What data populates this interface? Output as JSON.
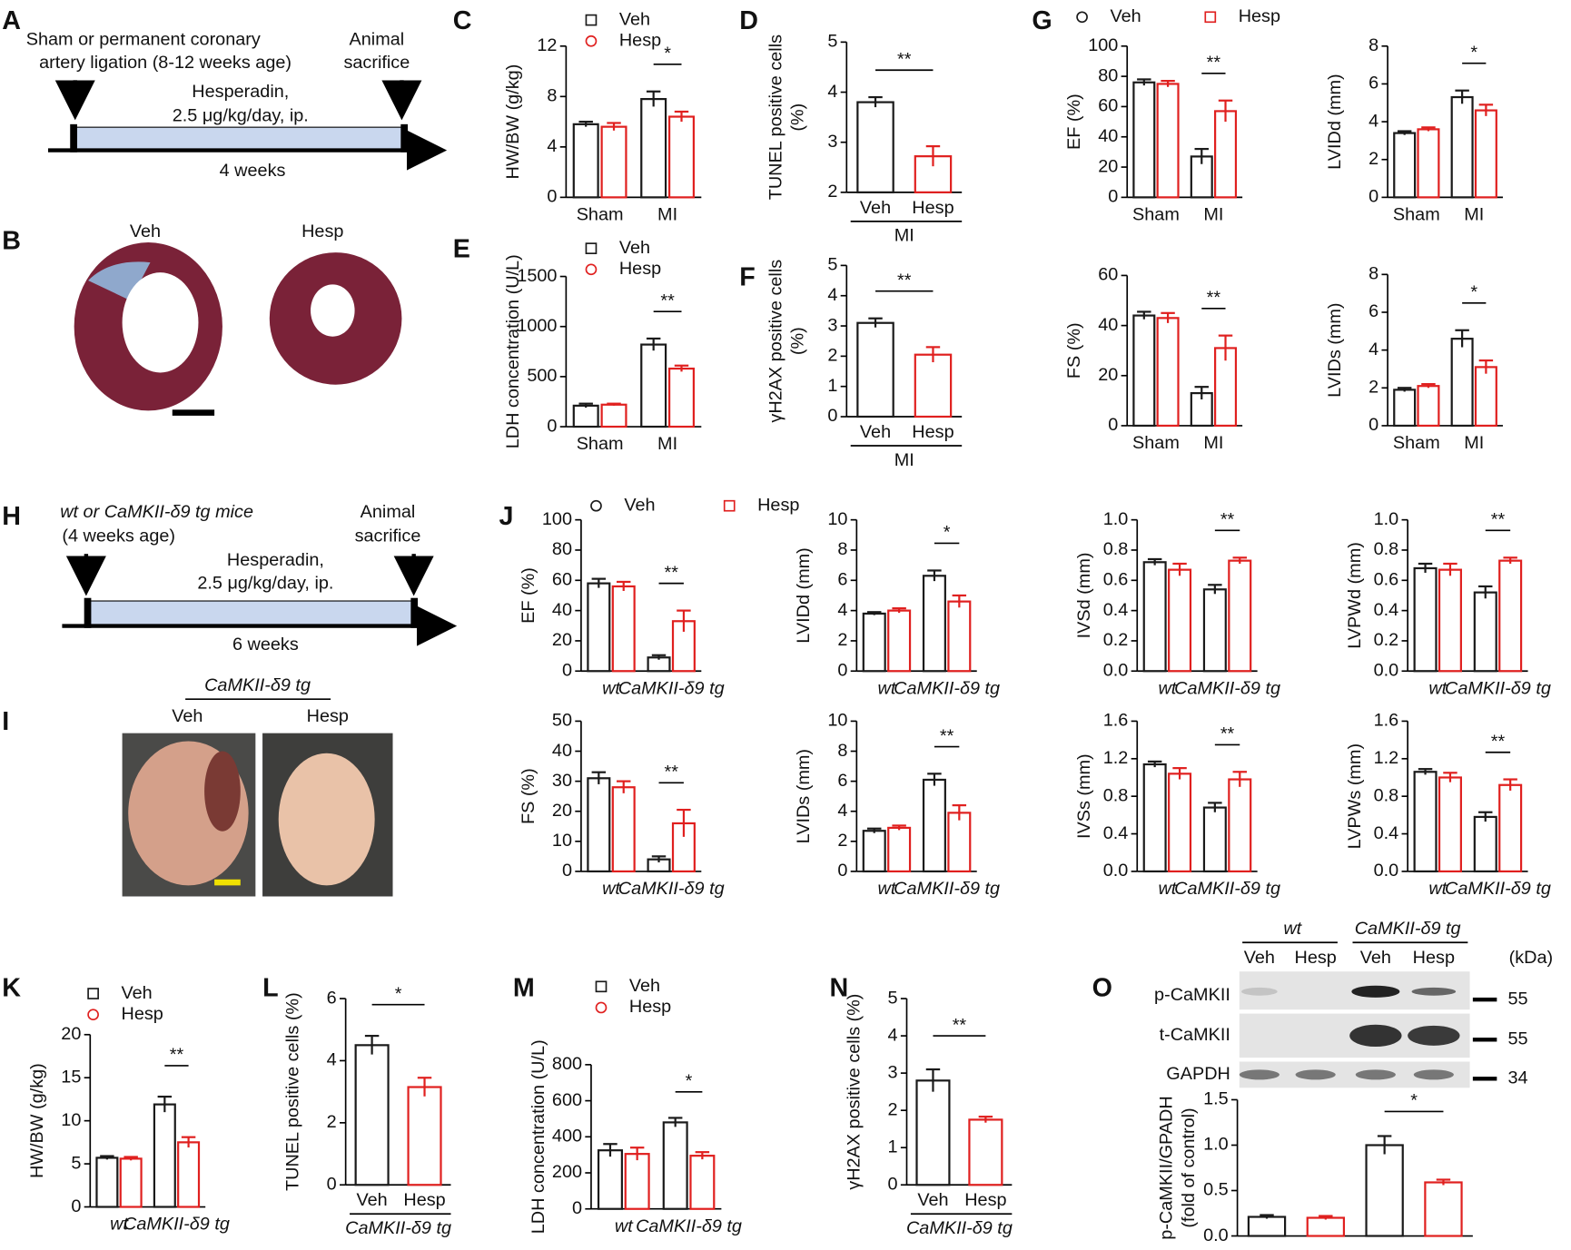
{
  "panels": [
    "A",
    "B",
    "C",
    "D",
    "E",
    "F",
    "G",
    "H",
    "I",
    "J",
    "K",
    "L",
    "M",
    "N",
    "O"
  ],
  "scheme_a": {
    "lines": [
      "Sham or permanent coronary",
      "artery ligation (8-12 weeks age)"
    ],
    "end": [
      "Animal",
      "sacrifice"
    ],
    "drug": [
      "Hesperadin,",
      "2.5 μg/kg/day, ip."
    ],
    "duration": "4 weeks"
  },
  "scheme_h": {
    "lines": [
      "wt or CaMKII-δ9 tg mice",
      "(4 weeks age)"
    ],
    "end": [
      "Animal",
      "sacrifice"
    ],
    "drug": [
      "Hesperadin,",
      "2.5 μg/kg/day, ip."
    ],
    "duration": "6 weeks"
  },
  "histology_b": {
    "labels": [
      "Veh",
      "Hesp"
    ]
  },
  "photo_i": {
    "group": "CaMKII-δ9 tg",
    "labels": [
      "Veh",
      "Hesp"
    ]
  },
  "blot_o": {
    "groups": [
      "wt",
      "CaMKII-δ9 tg"
    ],
    "lanes": [
      "Veh",
      "Hesp",
      "Veh",
      "Hesp"
    ],
    "unit": "(kDa)",
    "bands": [
      {
        "name": "p-CaMKII",
        "kda": 55
      },
      {
        "name": "t-CaMKII",
        "kda": 55
      },
      {
        "name": "GAPDH",
        "kda": 34
      }
    ]
  },
  "chart_data": [
    {
      "type": "bar",
      "ylabel": "HW/BW (g/kg)",
      "categories": [
        "Sham",
        "MI"
      ],
      "legend": true,
      "series": [
        {
          "name": "Veh",
          "marker": "square",
          "color": "#1a1a1a",
          "values": [
            5.8,
            7.8
          ],
          "errors": [
            0.2,
            0.6
          ]
        },
        {
          "name": "Hesp",
          "marker": "circle",
          "color": "#e0201f",
          "values": [
            5.6,
            6.4
          ],
          "errors": [
            0.3,
            0.4
          ]
        }
      ],
      "ylim": [
        0,
        12
      ],
      "yticks": [
        0,
        4,
        8,
        12
      ],
      "annotations": [
        {
          "text": "*",
          "at": 1
        }
      ]
    },
    {
      "type": "bar",
      "ylabel": [
        "TUNEL positive cells",
        "(%)"
      ],
      "categories": [
        "Veh",
        "Hesp"
      ],
      "values": [
        3.8,
        2.72
      ],
      "errors": [
        0.1,
        0.2
      ],
      "colors": [
        "#1a1a1a",
        "#e0201f"
      ],
      "group_label": "MI",
      "ylim": [
        2,
        5
      ],
      "yticks": [
        2,
        3,
        4,
        5
      ],
      "annotations": [
        {
          "text": "**"
        }
      ]
    },
    {
      "type": "bar",
      "ylabel": "LDH concentration (U/L)",
      "categories": [
        "Sham",
        "MI"
      ],
      "legend": true,
      "series": [
        {
          "name": "Veh",
          "marker": "square",
          "color": "#1a1a1a",
          "values": [
            210,
            820
          ],
          "errors": [
            20,
            60
          ]
        },
        {
          "name": "Hesp",
          "marker": "circle",
          "color": "#e0201f",
          "values": [
            220,
            580
          ],
          "errors": [
            10,
            30
          ]
        }
      ],
      "ylim": [
        0,
        1500
      ],
      "yticks": [
        0,
        500,
        1000,
        1500
      ],
      "annotations": [
        {
          "text": "**",
          "at": 1
        }
      ]
    },
    {
      "type": "bar",
      "ylabel": [
        "γH2AX positive cells",
        "(%)"
      ],
      "categories": [
        "Veh",
        "Hesp"
      ],
      "values": [
        3.1,
        2.05
      ],
      "errors": [
        0.15,
        0.25
      ],
      "colors": [
        "#1a1a1a",
        "#e0201f"
      ],
      "group_label": "MI",
      "ylim": [
        0,
        5
      ],
      "yticks": [
        0,
        1,
        2,
        3,
        4,
        5
      ],
      "annotations": [
        {
          "text": "**"
        }
      ]
    },
    {
      "type": "bar",
      "ylabel": "EF (%)",
      "categories": [
        "Sham",
        "MI"
      ],
      "legend": true,
      "series": [
        {
          "name": "Veh",
          "marker": "circle",
          "color": "#1a1a1a",
          "values": [
            76,
            27
          ],
          "errors": [
            2,
            5
          ]
        },
        {
          "name": "Hesp",
          "marker": "square",
          "color": "#e0201f",
          "values": [
            75,
            57
          ],
          "errors": [
            2,
            7
          ]
        }
      ],
      "ylim": [
        0,
        100
      ],
      "yticks": [
        0,
        20,
        40,
        60,
        80,
        100
      ],
      "annotations": [
        {
          "text": "**",
          "at": 1
        }
      ]
    },
    {
      "type": "bar",
      "ylabel": "LVIDd (mm)",
      "categories": [
        "Sham",
        "MI"
      ],
      "series": [
        {
          "color": "#1a1a1a",
          "values": [
            3.4,
            5.3
          ],
          "errors": [
            0.1,
            0.35
          ]
        },
        {
          "color": "#e0201f",
          "values": [
            3.6,
            4.6
          ],
          "errors": [
            0.1,
            0.3
          ]
        }
      ],
      "ylim": [
        0,
        8
      ],
      "yticks": [
        0,
        2,
        4,
        6,
        8
      ],
      "annotations": [
        {
          "text": "*",
          "at": 1
        }
      ]
    },
    {
      "type": "bar",
      "ylabel": "FS (%)",
      "categories": [
        "Sham",
        "MI"
      ],
      "series": [
        {
          "color": "#1a1a1a",
          "values": [
            44,
            13
          ],
          "errors": [
            1.5,
            2.5
          ]
        },
        {
          "color": "#e0201f",
          "values": [
            43,
            31
          ],
          "errors": [
            2,
            5
          ]
        }
      ],
      "ylim": [
        0,
        60
      ],
      "yticks": [
        0,
        20,
        40,
        60
      ],
      "annotations": [
        {
          "text": "**",
          "at": 1
        }
      ]
    },
    {
      "type": "bar",
      "ylabel": "LVIDs (mm)",
      "categories": [
        "Sham",
        "MI"
      ],
      "series": [
        {
          "color": "#1a1a1a",
          "values": [
            1.9,
            4.6
          ],
          "errors": [
            0.1,
            0.45
          ]
        },
        {
          "color": "#e0201f",
          "values": [
            2.1,
            3.1
          ],
          "errors": [
            0.1,
            0.35
          ]
        }
      ],
      "ylim": [
        0,
        8
      ],
      "yticks": [
        0,
        2,
        4,
        6,
        8
      ],
      "annotations": [
        {
          "text": "*",
          "at": 1
        }
      ]
    },
    {
      "type": "bar",
      "ylabel": "EF (%)",
      "categories": [
        "wt",
        "CaMKII-δ9 tg"
      ],
      "category_style": "italic",
      "legend": true,
      "series": [
        {
          "name": "Veh",
          "marker": "circle",
          "color": "#1a1a1a",
          "values": [
            58,
            9
          ],
          "errors": [
            3,
            1.5
          ]
        },
        {
          "name": "Hesp",
          "marker": "square",
          "color": "#e0201f",
          "values": [
            56,
            33
          ],
          "errors": [
            3,
            7
          ]
        }
      ],
      "ylim": [
        0,
        100
      ],
      "yticks": [
        0,
        20,
        40,
        60,
        80,
        100
      ],
      "annotations": [
        {
          "text": "**",
          "at": 1
        }
      ]
    },
    {
      "type": "bar",
      "ylabel": "LVIDd (mm)",
      "categories": [
        "wt",
        "CaMKII-δ9 tg"
      ],
      "category_style": "italic",
      "series": [
        {
          "color": "#1a1a1a",
          "values": [
            3.8,
            6.3
          ],
          "errors": [
            0.1,
            0.35
          ]
        },
        {
          "color": "#e0201f",
          "values": [
            4.0,
            4.6
          ],
          "errors": [
            0.15,
            0.4
          ]
        }
      ],
      "ylim": [
        0,
        10
      ],
      "yticks": [
        0,
        2,
        4,
        6,
        8,
        10
      ],
      "annotations": [
        {
          "text": "*",
          "at": 1
        }
      ]
    },
    {
      "type": "bar",
      "ylabel": "IVSd (mm)",
      "categories": [
        "wt",
        "CaMKII-δ9 tg"
      ],
      "category_style": "italic",
      "series": [
        {
          "color": "#1a1a1a",
          "values": [
            0.72,
            0.54
          ],
          "errors": [
            0.02,
            0.03
          ]
        },
        {
          "color": "#e0201f",
          "values": [
            0.67,
            0.73
          ],
          "errors": [
            0.04,
            0.02
          ]
        }
      ],
      "ylim": [
        0,
        1
      ],
      "yticks": [
        {
          "value": 0,
          "label": "0.0"
        },
        0.2,
        0.4,
        0.6,
        0.8,
        {
          "value": 1,
          "label": "1.0"
        }
      ],
      "annotations": [
        {
          "text": "**",
          "at": 1
        }
      ]
    },
    {
      "type": "bar",
      "ylabel": "LVPWd (mm)",
      "categories": [
        "wt",
        "CaMKII-δ9 tg"
      ],
      "category_style": "italic",
      "series": [
        {
          "color": "#1a1a1a",
          "values": [
            0.68,
            0.52
          ],
          "errors": [
            0.03,
            0.04
          ]
        },
        {
          "color": "#e0201f",
          "values": [
            0.67,
            0.73
          ],
          "errors": [
            0.04,
            0.02
          ]
        }
      ],
      "ylim": [
        0,
        1
      ],
      "yticks": [
        {
          "value": 0,
          "label": "0.0"
        },
        0.2,
        0.4,
        0.6,
        0.8,
        {
          "value": 1,
          "label": "1.0"
        }
      ],
      "annotations": [
        {
          "text": "**",
          "at": 1
        }
      ]
    },
    {
      "type": "bar",
      "ylabel": "FS (%)",
      "categories": [
        "wt",
        "CaMKII-δ9 tg"
      ],
      "category_style": "italic",
      "series": [
        {
          "color": "#1a1a1a",
          "values": [
            31,
            4
          ],
          "errors": [
            2,
            1
          ]
        },
        {
          "color": "#e0201f",
          "values": [
            28,
            16
          ],
          "errors": [
            2,
            4.5
          ]
        }
      ],
      "ylim": [
        0,
        50
      ],
      "yticks": [
        0,
        10,
        20,
        30,
        40,
        50
      ],
      "annotations": [
        {
          "text": "**",
          "at": 1
        }
      ]
    },
    {
      "type": "bar",
      "ylabel": "LVIDs (mm)",
      "categories": [
        "wt",
        "CaMKII-δ9 tg"
      ],
      "category_style": "italic",
      "series": [
        {
          "color": "#1a1a1a",
          "values": [
            2.7,
            6.1
          ],
          "errors": [
            0.15,
            0.4
          ]
        },
        {
          "color": "#e0201f",
          "values": [
            2.9,
            3.9
          ],
          "errors": [
            0.15,
            0.5
          ]
        }
      ],
      "ylim": [
        0,
        10
      ],
      "yticks": [
        0,
        2,
        4,
        6,
        8,
        10
      ],
      "annotations": [
        {
          "text": "**",
          "at": 1
        }
      ]
    },
    {
      "type": "bar",
      "ylabel": "IVSs (mm)",
      "categories": [
        "wt",
        "CaMKII-δ9 tg"
      ],
      "category_style": "italic",
      "series": [
        {
          "color": "#1a1a1a",
          "values": [
            1.14,
            0.68
          ],
          "errors": [
            0.03,
            0.05
          ]
        },
        {
          "color": "#e0201f",
          "values": [
            1.04,
            0.98
          ],
          "errors": [
            0.06,
            0.08
          ]
        }
      ],
      "ylim": [
        0,
        1.6
      ],
      "yticks": [
        {
          "value": 0,
          "label": "0.0"
        },
        0.4,
        0.8,
        1.2,
        1.6
      ],
      "annotations": [
        {
          "text": "**",
          "at": 1
        }
      ]
    },
    {
      "type": "bar",
      "ylabel": "LVPWs (mm)",
      "categories": [
        "wt",
        "CaMKII-δ9 tg"
      ],
      "category_style": "italic",
      "series": [
        {
          "color": "#1a1a1a",
          "values": [
            1.06,
            0.58
          ],
          "errors": [
            0.03,
            0.05
          ]
        },
        {
          "color": "#e0201f",
          "values": [
            1.0,
            0.92
          ],
          "errors": [
            0.05,
            0.06
          ]
        }
      ],
      "ylim": [
        0,
        1.6
      ],
      "yticks": [
        {
          "value": 0,
          "label": "0.0"
        },
        0.4,
        0.8,
        1.2,
        1.6
      ],
      "annotations": [
        {
          "text": "**",
          "at": 1
        }
      ]
    },
    {
      "type": "bar",
      "ylabel": "HW/BW (g/kg)",
      "categories": [
        "wt",
        "CaMKII-δ9 tg"
      ],
      "category_style": "italic",
      "legend": true,
      "series": [
        {
          "name": "Veh",
          "marker": "square",
          "color": "#1a1a1a",
          "values": [
            5.7,
            11.9
          ],
          "errors": [
            0.2,
            0.9
          ]
        },
        {
          "name": "Hesp",
          "marker": "circle",
          "color": "#e0201f",
          "values": [
            5.6,
            7.5
          ],
          "errors": [
            0.2,
            0.6
          ]
        }
      ],
      "ylim": [
        0,
        20
      ],
      "yticks": [
        0,
        5,
        10,
        15,
        20
      ],
      "annotations": [
        {
          "text": "**",
          "at": 1
        }
      ]
    },
    {
      "type": "bar",
      "ylabel": "TUNEL positive cells (%)",
      "categories": [
        "Veh",
        "Hesp"
      ],
      "values": [
        4.5,
        3.15
      ],
      "errors": [
        0.3,
        0.3
      ],
      "colors": [
        "#1a1a1a",
        "#e0201f"
      ],
      "group_label": "CaMKII-δ9 tg",
      "category_style": "italic",
      "ylim": [
        0,
        6
      ],
      "yticks": [
        0,
        2,
        4,
        6
      ],
      "annotations": [
        {
          "text": "*"
        }
      ]
    },
    {
      "type": "bar",
      "ylabel": "LDH concentration (U/L)",
      "categories": [
        "wt",
        "CaMKII-δ9 tg"
      ],
      "category_style": "italic",
      "legend": true,
      "series": [
        {
          "name": "Veh",
          "marker": "square",
          "color": "#1a1a1a",
          "values": [
            325,
            480
          ],
          "errors": [
            35,
            25
          ]
        },
        {
          "name": "Hesp",
          "marker": "circle",
          "color": "#e0201f",
          "values": [
            305,
            295
          ],
          "errors": [
            35,
            20
          ]
        }
      ],
      "ylim": [
        0,
        800
      ],
      "yticks": [
        0,
        200,
        400,
        600,
        800
      ],
      "annotations": [
        {
          "text": "*",
          "at": 1
        }
      ]
    },
    {
      "type": "bar",
      "ylabel": "γH2AX positive cells (%)",
      "categories": [
        "Veh",
        "Hesp"
      ],
      "values": [
        2.8,
        1.75
      ],
      "errors": [
        0.3,
        0.08
      ],
      "colors": [
        "#1a1a1a",
        "#e0201f"
      ],
      "group_label": "CaMKII-δ9 tg",
      "category_style": "italic",
      "ylim": [
        0,
        5
      ],
      "yticks": [
        0,
        1,
        2,
        3,
        4,
        5
      ],
      "annotations": [
        {
          "text": "**"
        }
      ]
    },
    {
      "type": "bar",
      "ylabel": [
        "p-CaMKII/GPADH",
        "(fold of control)"
      ],
      "values": [
        0.21,
        0.2,
        1.0,
        0.59
      ],
      "errors": [
        0.02,
        0.02,
        0.1,
        0.03
      ],
      "colors": [
        "#1a1a1a",
        "#e0201f",
        "#1a1a1a",
        "#e0201f"
      ],
      "ylim": [
        0,
        1.5
      ],
      "yticks": [
        {
          "value": 0,
          "label": "0.0"
        },
        {
          "value": 0.5,
          "label": "0.5"
        },
        {
          "value": 1,
          "label": "1.0"
        },
        1.5
      ],
      "annotations": [
        {
          "text": "*",
          "from": 2,
          "to": 3
        }
      ]
    }
  ]
}
